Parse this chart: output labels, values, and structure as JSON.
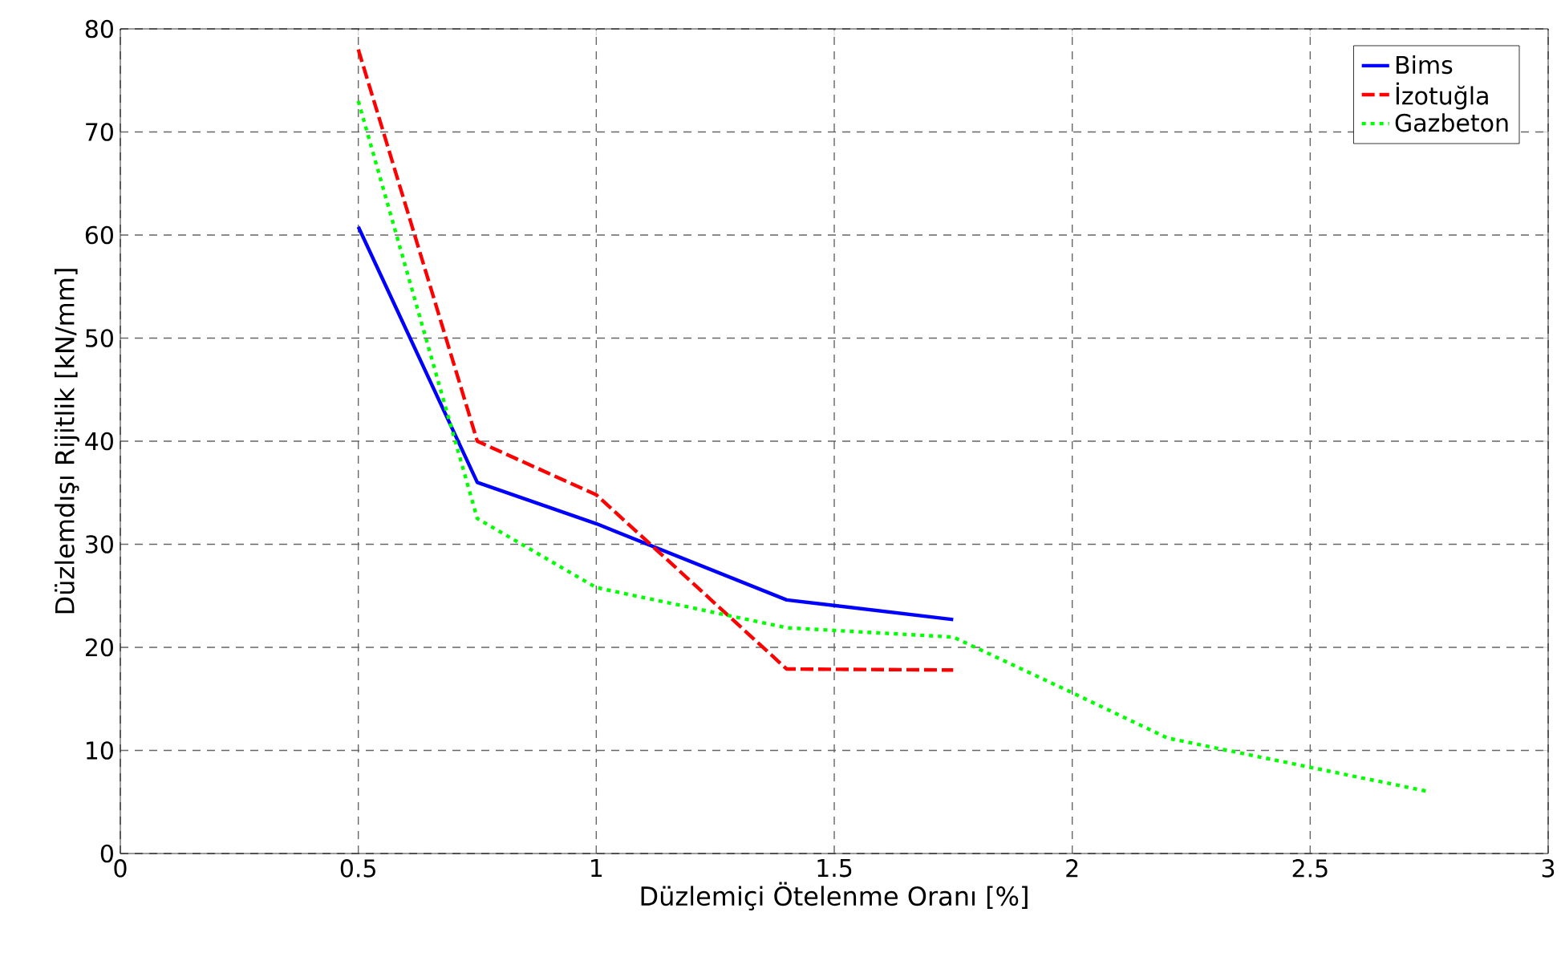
{
  "chart_data": {
    "type": "line",
    "xlabel": "Düzlemiçi Ötelenme Oranı [%]",
    "ylabel": "Düzlemdışı Rijitlik [kN/mm]",
    "xlim": [
      0,
      3
    ],
    "ylim": [
      0,
      80
    ],
    "xticks": [
      0,
      0.5,
      1,
      1.5,
      2,
      2.5,
      3
    ],
    "yticks": [
      0,
      10,
      20,
      30,
      40,
      50,
      60,
      70,
      80
    ],
    "grid": true,
    "legend": "top right",
    "series": [
      {
        "name": "Bims",
        "color": "#0000ff",
        "line_style": "solid",
        "x": [
          0.5,
          0.75,
          1.0,
          1.4,
          1.75
        ],
        "values": [
          60.8,
          36,
          32,
          24.6,
          22.7
        ]
      },
      {
        "name": "İzotuğla",
        "color": "#ff0000",
        "line_style": "dashed",
        "x": [
          0.5,
          0.75,
          1.0,
          1.4,
          1.75
        ],
        "values": [
          78,
          40,
          34.8,
          17.9,
          17.8
        ]
      },
      {
        "name": "Gazbeton",
        "color": "#00ff00",
        "line_style": "dotted",
        "x": [
          0.5,
          0.75,
          1.0,
          1.4,
          1.75,
          2.0,
          2.2,
          2.75
        ],
        "values": [
          73,
          32.5,
          25.8,
          21.9,
          21,
          15.6,
          11.2,
          6
        ]
      }
    ]
  }
}
